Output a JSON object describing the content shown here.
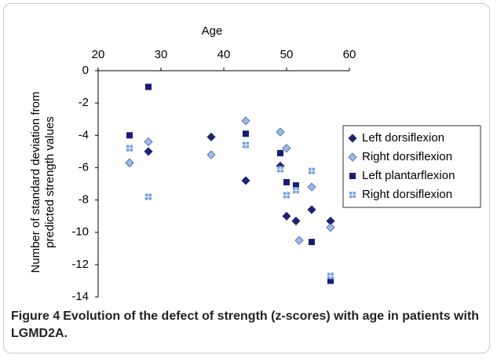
{
  "chart_data": {
    "type": "scatter",
    "x_label": "Age",
    "y_label": [
      "Number of standard deviation from",
      "predicted strength values"
    ],
    "xlim": [
      20,
      60
    ],
    "xticks": [
      20,
      30,
      40,
      50,
      60
    ],
    "ylim": [
      -14,
      0
    ],
    "yticks": [
      0,
      -2,
      -4,
      -6,
      -8,
      -10,
      -12,
      -14
    ],
    "legend": "right",
    "series": [
      {
        "name": "Left dorsiflexion",
        "color": "#1c2470",
        "marker": "diamond",
        "x": [
          25,
          28,
          38,
          43.5,
          49,
          50,
          51.5,
          54,
          57
        ],
        "values": [
          -5.7,
          -5.0,
          -4.1,
          -6.8,
          -5.9,
          -9.0,
          -9.3,
          -8.6,
          -9.3
        ]
      },
      {
        "name": "Right dorsiflexion",
        "color": "#9dbbea",
        "marker": "open-diamond",
        "x": [
          25,
          28,
          38,
          43.5,
          49,
          50,
          52,
          54,
          57
        ],
        "values": [
          -5.7,
          -4.4,
          -5.2,
          -3.1,
          -3.8,
          -4.8,
          -10.5,
          -7.2,
          -9.7
        ]
      },
      {
        "name": "Left plantarflexion",
        "color": "#161c78",
        "marker": "square",
        "x": [
          25,
          28,
          43.5,
          49,
          50,
          51.5,
          54,
          57
        ],
        "values": [
          -4.0,
          -1.0,
          -3.9,
          -5.1,
          -6.9,
          -7.1,
          -10.6,
          -13.0
        ]
      },
      {
        "name": "Right dorsiflexion",
        "color": "#6f9fe0",
        "marker": "plus",
        "x": [
          25,
          28,
          43.5,
          49,
          50,
          51.5,
          54,
          57
        ],
        "values": [
          -4.8,
          -7.8,
          -4.6,
          -6.1,
          -7.7,
          -7.4,
          -6.2,
          -12.7
        ]
      }
    ]
  },
  "caption": {
    "label": "Figure 4",
    "text": "Evolution of the defect of strength (z-scores) with age in patients with LGMD2A."
  }
}
